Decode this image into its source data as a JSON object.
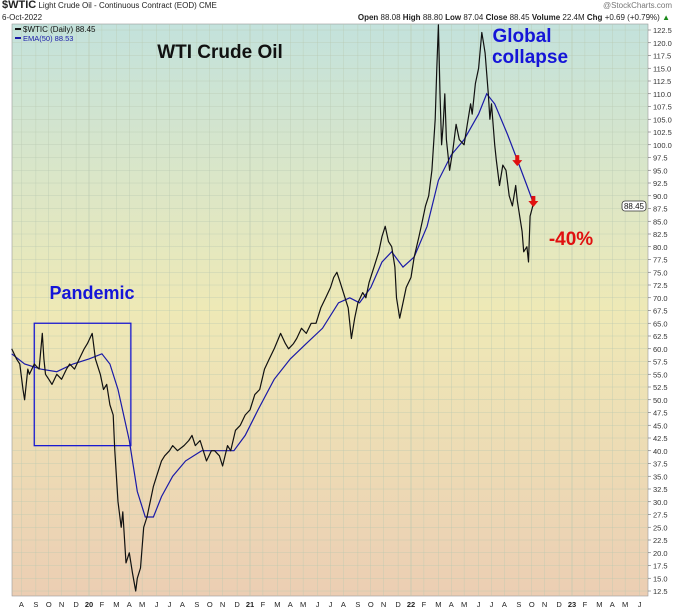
{
  "header": {
    "symbol": "$WTIC",
    "description": "Light Crude Oil - Continuous Contract (EOD)",
    "exchange": "CME",
    "date": "6-Oct-2022",
    "watermark": "@StockCharts.com",
    "open_label": "Open",
    "open": "88.08",
    "high_label": "High",
    "high": "88.80",
    "low_label": "Low",
    "low": "87.04",
    "close_label": "Close",
    "close": "88.45",
    "volume_label": "Volume",
    "volume": "22.4M",
    "chg_label": "Chg",
    "chg": "+0.69 (+0.79%)",
    "chg_arrow": "▲"
  },
  "legend": {
    "price_label": "$WTIC (Daily) 88.45",
    "ema_label": "EMA(50) 88.53"
  },
  "colors": {
    "price": "#111111",
    "ema": "#1a1aa8",
    "annotation_blue": "#1515d8",
    "annotation_red": "#e01010"
  },
  "chart_data": {
    "type": "line",
    "title": "WTI Crude Oil",
    "annotations": {
      "pandemic": "Pandemic",
      "global": "Global",
      "collapse": "collapse",
      "drop": "-40%"
    },
    "pandemic_box": {
      "x": [
        2019.66,
        2020.26
      ],
      "y": [
        41,
        65
      ]
    },
    "down_arrows": [
      {
        "x": 2022.66,
        "y": 96
      },
      {
        "x": 2022.76,
        "y": 88
      }
    ],
    "last_price_tag": "88.45",
    "xlim": [
      2019.48,
      2023.43
    ],
    "ylim": [
      11,
      124
    ],
    "ytick_min": 12.5,
    "ytick_max": 122.5,
    "ytick_step": 2.5,
    "xticks": [
      {
        "x": 2019.58,
        "label": "A"
      },
      {
        "x": 2019.67,
        "label": "S"
      },
      {
        "x": 2019.75,
        "label": "O"
      },
      {
        "x": 2019.83,
        "label": "N"
      },
      {
        "x": 2019.92,
        "label": "D"
      },
      {
        "x": 2020.0,
        "label": "20",
        "bold": true
      },
      {
        "x": 2020.08,
        "label": "F"
      },
      {
        "x": 2020.17,
        "label": "M"
      },
      {
        "x": 2020.25,
        "label": "A"
      },
      {
        "x": 2020.33,
        "label": "M"
      },
      {
        "x": 2020.42,
        "label": "J"
      },
      {
        "x": 2020.5,
        "label": "J"
      },
      {
        "x": 2020.58,
        "label": "A"
      },
      {
        "x": 2020.67,
        "label": "S"
      },
      {
        "x": 2020.75,
        "label": "O"
      },
      {
        "x": 2020.83,
        "label": "N"
      },
      {
        "x": 2020.92,
        "label": "D"
      },
      {
        "x": 2021.0,
        "label": "21",
        "bold": true
      },
      {
        "x": 2021.08,
        "label": "F"
      },
      {
        "x": 2021.17,
        "label": "M"
      },
      {
        "x": 2021.25,
        "label": "A"
      },
      {
        "x": 2021.33,
        "label": "M"
      },
      {
        "x": 2021.42,
        "label": "J"
      },
      {
        "x": 2021.5,
        "label": "J"
      },
      {
        "x": 2021.58,
        "label": "A"
      },
      {
        "x": 2021.67,
        "label": "S"
      },
      {
        "x": 2021.75,
        "label": "O"
      },
      {
        "x": 2021.83,
        "label": "N"
      },
      {
        "x": 2021.92,
        "label": "D"
      },
      {
        "x": 2022.0,
        "label": "22",
        "bold": true
      },
      {
        "x": 2022.08,
        "label": "F"
      },
      {
        "x": 2022.17,
        "label": "M"
      },
      {
        "x": 2022.25,
        "label": "A"
      },
      {
        "x": 2022.33,
        "label": "M"
      },
      {
        "x": 2022.42,
        "label": "J"
      },
      {
        "x": 2022.5,
        "label": "J"
      },
      {
        "x": 2022.58,
        "label": "A"
      },
      {
        "x": 2022.67,
        "label": "S"
      },
      {
        "x": 2022.75,
        "label": "O"
      },
      {
        "x": 2022.83,
        "label": "N"
      },
      {
        "x": 2022.92,
        "label": "D"
      },
      {
        "x": 2023.0,
        "label": "23",
        "bold": true
      },
      {
        "x": 2023.08,
        "label": "F"
      },
      {
        "x": 2023.17,
        "label": "M"
      },
      {
        "x": 2023.25,
        "label": "A"
      },
      {
        "x": 2023.33,
        "label": "M"
      },
      {
        "x": 2023.42,
        "label": "J"
      }
    ],
    "series": [
      {
        "name": "$WTIC (Daily)",
        "points": [
          [
            2019.52,
            60
          ],
          [
            2019.55,
            58
          ],
          [
            2019.57,
            57
          ],
          [
            2019.59,
            52
          ],
          [
            2019.6,
            50
          ],
          [
            2019.62,
            56
          ],
          [
            2019.63,
            55
          ],
          [
            2019.66,
            57
          ],
          [
            2019.69,
            56
          ],
          [
            2019.71,
            63
          ],
          [
            2019.72,
            58
          ],
          [
            2019.73,
            55
          ],
          [
            2019.75,
            54
          ],
          [
            2019.77,
            53
          ],
          [
            2019.8,
            55
          ],
          [
            2019.83,
            54
          ],
          [
            2019.86,
            56
          ],
          [
            2019.88,
            57
          ],
          [
            2019.91,
            56
          ],
          [
            2019.94,
            58
          ],
          [
            2019.97,
            60
          ],
          [
            2019.99,
            61
          ],
          [
            2020.02,
            63
          ],
          [
            2020.04,
            58
          ],
          [
            2020.07,
            55
          ],
          [
            2020.09,
            52
          ],
          [
            2020.11,
            53
          ],
          [
            2020.13,
            49
          ],
          [
            2020.15,
            47
          ],
          [
            2020.16,
            40
          ],
          [
            2020.18,
            30
          ],
          [
            2020.2,
            25
          ],
          [
            2020.21,
            28
          ],
          [
            2020.23,
            18
          ],
          [
            2020.25,
            20
          ],
          [
            2020.27,
            16
          ],
          [
            2020.29,
            12.5
          ],
          [
            2020.3,
            15
          ],
          [
            2020.32,
            17
          ],
          [
            2020.34,
            25
          ],
          [
            2020.36,
            27
          ],
          [
            2020.38,
            30
          ],
          [
            2020.4,
            33
          ],
          [
            2020.42,
            35
          ],
          [
            2020.45,
            38
          ],
          [
            2020.47,
            39
          ],
          [
            2020.5,
            40
          ],
          [
            2020.52,
            41
          ],
          [
            2020.55,
            40
          ],
          [
            2020.59,
            41
          ],
          [
            2020.62,
            42
          ],
          [
            2020.64,
            43
          ],
          [
            2020.66,
            41
          ],
          [
            2020.69,
            42
          ],
          [
            2020.71,
            40
          ],
          [
            2020.73,
            38
          ],
          [
            2020.76,
            40
          ],
          [
            2020.78,
            40
          ],
          [
            2020.81,
            39
          ],
          [
            2020.83,
            37
          ],
          [
            2020.86,
            41
          ],
          [
            2020.88,
            40
          ],
          [
            2020.91,
            44
          ],
          [
            2020.94,
            45
          ],
          [
            2020.97,
            47
          ],
          [
            2021.0,
            48
          ],
          [
            2021.03,
            51
          ],
          [
            2021.06,
            52
          ],
          [
            2021.09,
            56
          ],
          [
            2021.12,
            58
          ],
          [
            2021.15,
            60
          ],
          [
            2021.19,
            63
          ],
          [
            2021.22,
            61
          ],
          [
            2021.24,
            60
          ],
          [
            2021.27,
            61
          ],
          [
            2021.29,
            62
          ],
          [
            2021.32,
            64
          ],
          [
            2021.35,
            63
          ],
          [
            2021.38,
            65
          ],
          [
            2021.41,
            65
          ],
          [
            2021.44,
            68
          ],
          [
            2021.47,
            70
          ],
          [
            2021.5,
            72
          ],
          [
            2021.52,
            74
          ],
          [
            2021.54,
            75
          ],
          [
            2021.56,
            73
          ],
          [
            2021.58,
            71
          ],
          [
            2021.61,
            68
          ],
          [
            2021.62,
            65
          ],
          [
            2021.63,
            62
          ],
          [
            2021.65,
            66
          ],
          [
            2021.67,
            69
          ],
          [
            2021.7,
            71
          ],
          [
            2021.72,
            70
          ],
          [
            2021.74,
            73
          ],
          [
            2021.77,
            76
          ],
          [
            2021.8,
            79
          ],
          [
            2021.82,
            82
          ],
          [
            2021.84,
            84
          ],
          [
            2021.86,
            81
          ],
          [
            2021.88,
            80
          ],
          [
            2021.9,
            76
          ],
          [
            2021.91,
            70
          ],
          [
            2021.93,
            66
          ],
          [
            2021.95,
            69
          ],
          [
            2021.97,
            72
          ],
          [
            2022.0,
            74
          ],
          [
            2022.02,
            78
          ],
          [
            2022.05,
            82
          ],
          [
            2022.07,
            85
          ],
          [
            2022.09,
            88
          ],
          [
            2022.11,
            90
          ],
          [
            2022.13,
            95
          ],
          [
            2022.15,
            105
          ],
          [
            2022.16,
            115
          ],
          [
            2022.17,
            123.5
          ],
          [
            2022.18,
            110
          ],
          [
            2022.19,
            100
          ],
          [
            2022.2,
            104
          ],
          [
            2022.21,
            110
          ],
          [
            2022.22,
            101
          ],
          [
            2022.24,
            95
          ],
          [
            2022.26,
            99
          ],
          [
            2022.28,
            104
          ],
          [
            2022.3,
            101
          ],
          [
            2022.33,
            100
          ],
          [
            2022.35,
            104
          ],
          [
            2022.37,
            108
          ],
          [
            2022.38,
            106
          ],
          [
            2022.4,
            112
          ],
          [
            2022.42,
            115
          ],
          [
            2022.44,
            122
          ],
          [
            2022.45,
            120
          ],
          [
            2022.46,
            118
          ],
          [
            2022.48,
            110
          ],
          [
            2022.49,
            105
          ],
          [
            2022.5,
            108
          ],
          [
            2022.52,
            100
          ],
          [
            2022.53,
            97
          ],
          [
            2022.55,
            92
          ],
          [
            2022.57,
            96
          ],
          [
            2022.59,
            95
          ],
          [
            2022.61,
            90
          ],
          [
            2022.63,
            88
          ],
          [
            2022.65,
            92
          ],
          [
            2022.66,
            89
          ],
          [
            2022.68,
            85
          ],
          [
            2022.69,
            83
          ],
          [
            2022.7,
            79
          ],
          [
            2022.72,
            80
          ],
          [
            2022.73,
            77
          ],
          [
            2022.74,
            86
          ],
          [
            2022.76,
            88.45
          ]
        ]
      },
      {
        "name": "EMA(50)",
        "points": [
          [
            2019.52,
            59
          ],
          [
            2019.6,
            57
          ],
          [
            2019.7,
            56
          ],
          [
            2019.8,
            55.5
          ],
          [
            2019.9,
            57
          ],
          [
            2020.0,
            58
          ],
          [
            2020.08,
            59
          ],
          [
            2020.13,
            57
          ],
          [
            2020.18,
            52
          ],
          [
            2020.25,
            42
          ],
          [
            2020.3,
            32
          ],
          [
            2020.35,
            27
          ],
          [
            2020.4,
            27
          ],
          [
            2020.45,
            31
          ],
          [
            2020.52,
            35
          ],
          [
            2020.6,
            38
          ],
          [
            2020.7,
            40
          ],
          [
            2020.8,
            40
          ],
          [
            2020.9,
            40
          ],
          [
            2020.97,
            43
          ],
          [
            2021.05,
            48
          ],
          [
            2021.15,
            54
          ],
          [
            2021.25,
            58
          ],
          [
            2021.35,
            61
          ],
          [
            2021.45,
            64
          ],
          [
            2021.55,
            69
          ],
          [
            2021.62,
            70
          ],
          [
            2021.68,
            69
          ],
          [
            2021.75,
            72
          ],
          [
            2021.82,
            77
          ],
          [
            2021.88,
            79
          ],
          [
            2021.95,
            76
          ],
          [
            2022.02,
            78
          ],
          [
            2022.1,
            84
          ],
          [
            2022.17,
            93
          ],
          [
            2022.25,
            98
          ],
          [
            2022.33,
            101
          ],
          [
            2022.42,
            106
          ],
          [
            2022.47,
            110
          ],
          [
            2022.52,
            108
          ],
          [
            2022.6,
            102
          ],
          [
            2022.66,
            97
          ],
          [
            2022.72,
            92
          ],
          [
            2022.76,
            88.53
          ]
        ]
      }
    ]
  }
}
